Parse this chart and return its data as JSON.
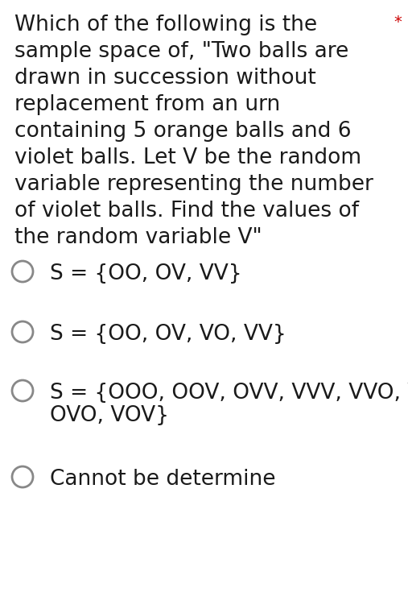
{
  "background_color": "#ffffff",
  "question_lines": [
    "Which of the following is the",
    "sample space of, \"Two balls are",
    "drawn in succession without",
    "replacement from an urn",
    "containing 5 orange balls and 6",
    "violet balls. Let V be the random",
    "variable representing the number",
    "of violet balls. Find the values of",
    "the random variable V\""
  ],
  "asterisk": "*",
  "asterisk_color": "#cc0000",
  "options": [
    "S = {OO, OV, VV}",
    "S = {OO, OV, VO, VV}",
    "S = {OOO, OOV, OVV, VVV, VVO, VOO\nOVO, VOV}",
    "Cannot be determine"
  ],
  "text_color": "#1a1a1a",
  "question_fontsize": 19,
  "option_fontsize": 19,
  "circle_color": "#888888",
  "circle_linewidth": 2.0
}
